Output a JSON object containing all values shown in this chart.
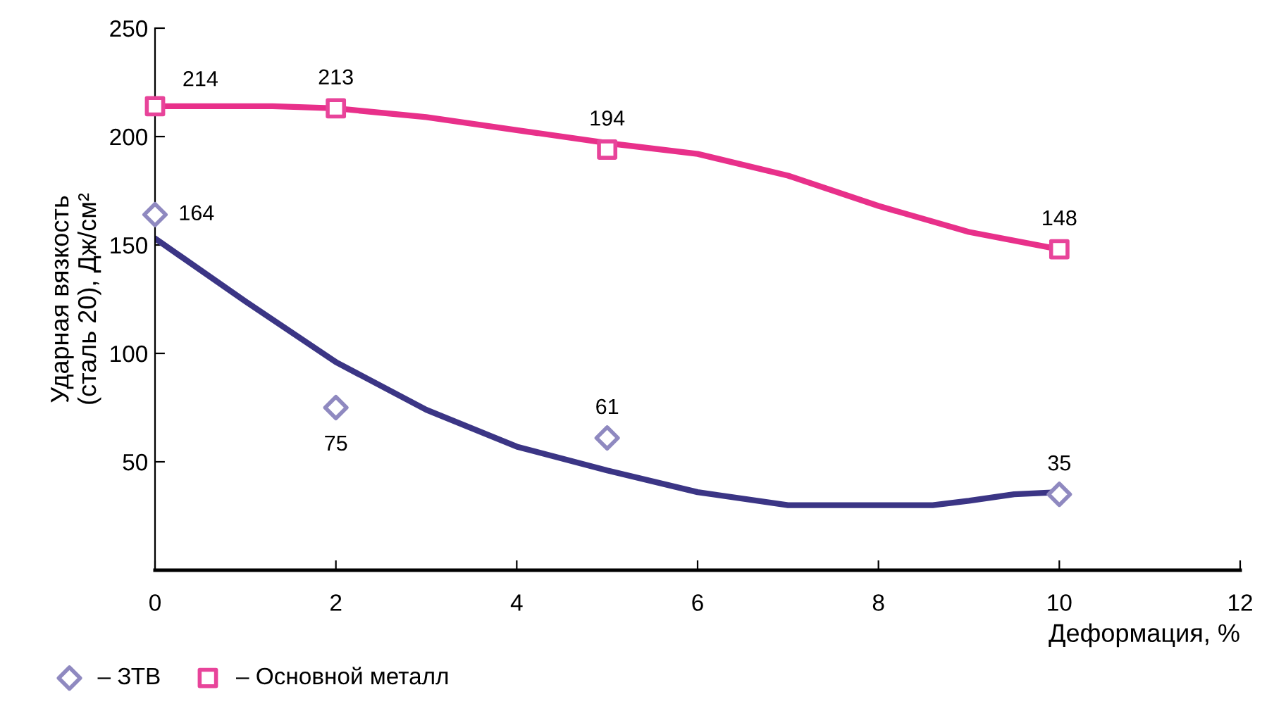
{
  "chart_data": {
    "type": "scatter",
    "xlabel": "Деформация, %",
    "ylabel": "Ударная вязкость\n(сталь 20), Дж/см²",
    "xlim": [
      0,
      12
    ],
    "xticks": [
      0,
      2,
      4,
      6,
      8,
      10,
      12
    ],
    "ylim": [
      0,
      250
    ],
    "yticks": [
      50,
      100,
      150,
      200,
      250
    ],
    "grid": false,
    "legend": "bottom left",
    "series": [
      {
        "type": "line",
        "color": "#e8308a",
        "marker": "none",
        "x": [
          0,
          1.3,
          2,
          3,
          4,
          5,
          6,
          7,
          8,
          9,
          10
        ],
        "values": [
          214,
          214,
          213,
          209,
          203,
          197,
          192,
          182,
          168,
          156,
          148
        ]
      },
      {
        "type": "line",
        "color": "#3b3585",
        "marker": "none",
        "x": [
          0,
          1,
          2,
          3,
          4,
          5,
          6,
          7,
          8,
          8.6,
          9,
          9.5,
          10
        ],
        "values": [
          153,
          124,
          96,
          74,
          57,
          46,
          36,
          30,
          30,
          30,
          32,
          35,
          36
        ]
      },
      {
        "name": "– ЗТВ",
        "color": "#8f89c0",
        "marker": "diamond",
        "x": [
          0,
          2,
          5,
          10
        ],
        "values": [
          164,
          75,
          61,
          35
        ],
        "value_labels": [
          "164",
          "75",
          "61",
          "35"
        ]
      },
      {
        "name": "– Основной металл",
        "color": "#e8449a",
        "marker": "square",
        "x": [
          0,
          2,
          5,
          10
        ],
        "values": [
          214,
          213,
          194,
          148
        ],
        "value_labels": [
          "214",
          "213",
          "194",
          "148"
        ]
      }
    ]
  }
}
